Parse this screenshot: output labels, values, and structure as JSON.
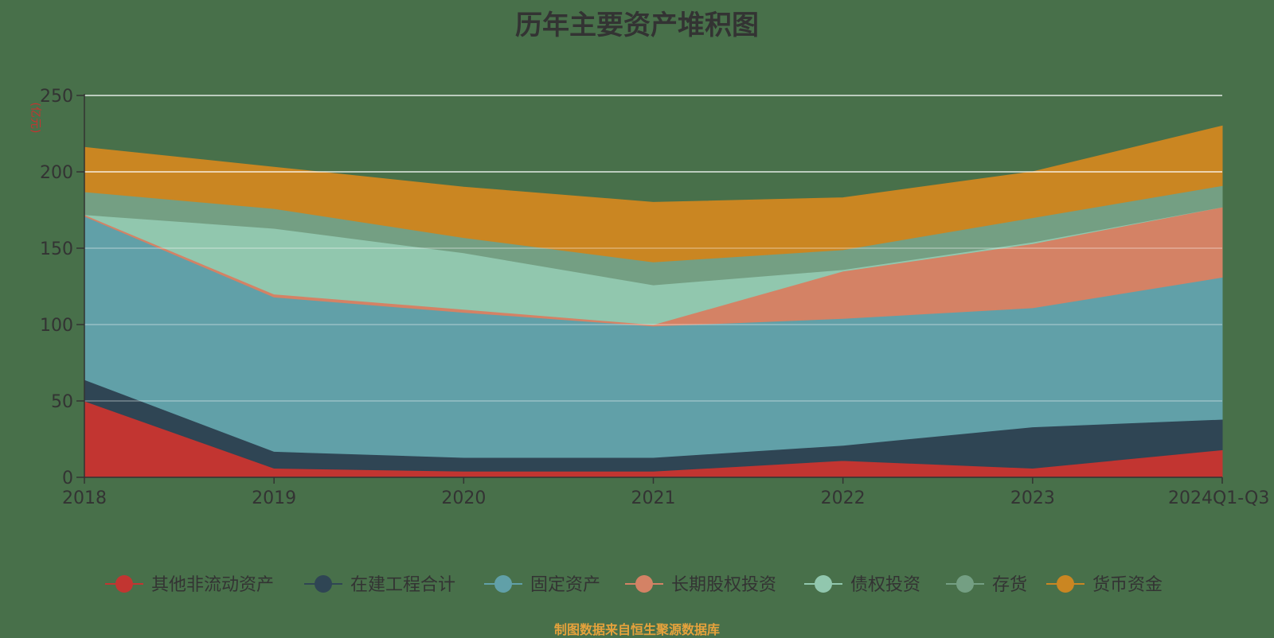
{
  "chart_data": {
    "type": "area",
    "stacked": true,
    "title": "历年主要资产堆积图",
    "ylabel": "(亿元)",
    "xlabel": "",
    "ylim": [
      0,
      250
    ],
    "yticks": [
      0,
      50,
      100,
      150,
      200,
      250
    ],
    "grid": true,
    "legend_position": "bottom",
    "categories": [
      "2018",
      "2019",
      "2020",
      "2021",
      "2022",
      "2023",
      "2024Q1-Q3"
    ],
    "series": [
      {
        "name": "其他非流动资产",
        "color": "#c23531",
        "values": [
          50,
          6,
          4,
          4,
          11,
          6,
          18
        ]
      },
      {
        "name": "在建工程合计",
        "color": "#2f4554",
        "values": [
          14,
          11,
          9,
          9,
          10,
          27,
          20
        ]
      },
      {
        "name": "固定资产",
        "color": "#61a0a8",
        "values": [
          107,
          101,
          95,
          86,
          83,
          78,
          93
        ]
      },
      {
        "name": "长期股权投资",
        "color": "#d48265",
        "values": [
          1,
          2,
          2,
          1,
          31,
          42,
          46
        ]
      },
      {
        "name": "债权投资",
        "color": "#91c7ae",
        "values": [
          0,
          43,
          37,
          26,
          1,
          1,
          0
        ]
      },
      {
        "name": "存货",
        "color": "#749f83",
        "values": [
          15,
          13,
          10,
          15,
          13,
          16,
          14
        ]
      },
      {
        "name": "货币资金",
        "color": "#ca8622",
        "values": [
          29,
          27,
          33,
          39,
          34,
          30,
          39
        ]
      }
    ]
  },
  "source_note": "制图数据来自恒生聚源数据库"
}
